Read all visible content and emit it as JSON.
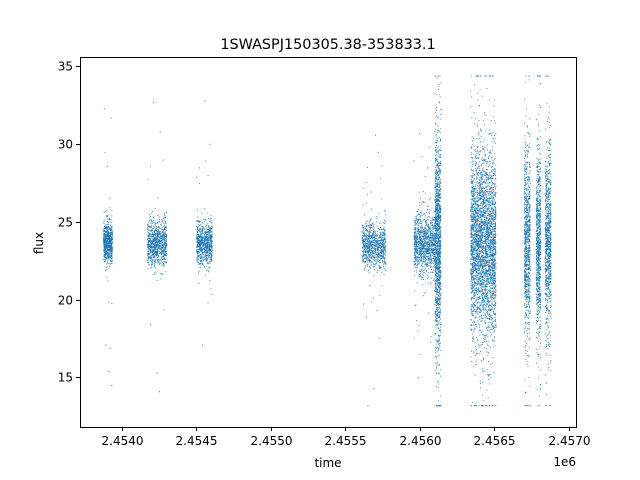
{
  "chart_data": {
    "type": "scatter",
    "title": "1SWASPJ150305.38-353833.1",
    "xlabel": "time",
    "ylabel": "flux",
    "x_offset_label": "1e6",
    "xlim": [
      2453720,
      2457050
    ],
    "ylim": [
      11.8,
      35.6
    ],
    "xticks": [
      2.454,
      2.4545,
      2.455,
      2.4555,
      2.456,
      2.4565,
      2.457
    ],
    "xtick_labels": [
      "2.4540",
      "2.4545",
      "2.4550",
      "2.4555",
      "2.4560",
      "2.4565",
      "2.4570"
    ],
    "yticks": [
      15,
      20,
      25,
      30,
      35
    ],
    "ytick_labels": [
      "15",
      "20",
      "25",
      "30",
      "35"
    ],
    "marker_color": "#1f77b4",
    "grid": false,
    "legend": "none",
    "clusters": [
      {
        "x_range": [
          2453875,
          2453935
        ],
        "center": 23.7,
        "core_spread": 1.1,
        "n": 700,
        "outliers": [
          [
            2453880,
            32.3
          ],
          [
            2453900,
            28.6
          ],
          [
            2453925,
            31.7
          ],
          [
            2453890,
            17.1
          ],
          [
            2453910,
            15.4
          ],
          [
            2453930,
            14.5
          ],
          [
            2453920,
            16.9
          ]
        ]
      },
      {
        "x_range": [
          2454170,
          2454300
        ],
        "center": 23.6,
        "core_spread": 1.2,
        "n": 900,
        "outliers": [
          [
            2454210,
            32.7
          ],
          [
            2454255,
            30.8
          ],
          [
            2454235,
            15.3
          ],
          [
            2454250,
            14.1
          ],
          [
            2454190,
            18.4
          ],
          [
            2454275,
            29.0
          ]
        ]
      },
      {
        "x_range": [
          2454500,
          2454605
        ],
        "center": 23.6,
        "core_spread": 1.2,
        "n": 800,
        "outliers": [
          [
            2454555,
            32.8
          ],
          [
            2454540,
            17.1
          ],
          [
            2454520,
            28.5
          ]
        ]
      },
      {
        "x_range": [
          2455610,
          2455770
        ],
        "center": 23.5,
        "core_spread": 1.2,
        "n": 900,
        "outliers": [
          [
            2455650,
            13.2
          ],
          [
            2455690,
            14.3
          ],
          [
            2455720,
            29.5
          ],
          [
            2455700,
            30.6
          ],
          [
            2455640,
            18.9
          ]
        ]
      },
      {
        "x_range": [
          2455960,
          2456100
        ],
        "center": 23.6,
        "core_spread": 1.6,
        "n": 1100,
        "outliers": [
          [
            2456000,
            16.5
          ],
          [
            2455990,
            15.0
          ],
          [
            2456050,
            28.5
          ]
        ]
      },
      {
        "x_range": [
          2456100,
          2456140
        ],
        "center": 23.6,
        "core_spread": 5.5,
        "n": 1400,
        "outliers": []
      },
      {
        "x_range": [
          2456340,
          2456510
        ],
        "center": 23.6,
        "core_spread": 5.0,
        "n": 3500,
        "outliers": []
      },
      {
        "x_range": [
          2456700,
          2456740
        ],
        "center": 23.6,
        "core_spread": 5.0,
        "n": 900,
        "outliers": []
      },
      {
        "x_range": [
          2456780,
          2456810
        ],
        "center": 23.6,
        "core_spread": 5.0,
        "n": 800,
        "outliers": []
      },
      {
        "x_range": [
          2456840,
          2456880
        ],
        "center": 23.6,
        "core_spread": 5.0,
        "n": 900,
        "outliers": []
      }
    ]
  }
}
